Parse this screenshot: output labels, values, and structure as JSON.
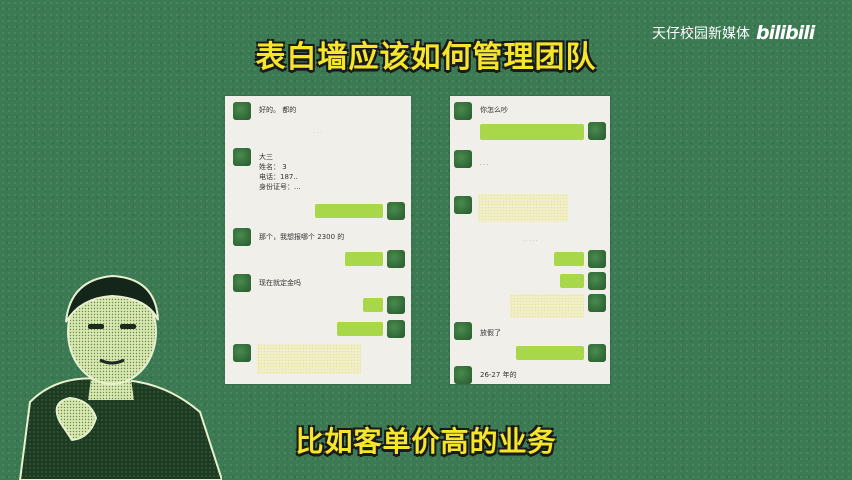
{
  "title": "表白墙应该如何管理团队",
  "subtitle": "比如客单价高的业务",
  "brand": {
    "text": "天仔校园新媒体",
    "logo": "bilibili"
  },
  "left_chat": {
    "msg1": "好的。 都的",
    "msg2_lines": [
      "大三",
      "姓名： 3",
      "电话：187..",
      "身份证号：..."
    ],
    "msg3": "那个，我想报哪个 2300 的",
    "msg4": "现在就定金吗"
  },
  "right_chat": {
    "msg1": "你怎么吵",
    "msg2": "放假了",
    "msg3": "26-27 年的"
  },
  "colors": {
    "title": "#f5e62a",
    "background": "#3b7a52",
    "bubble_me": "#a8d84a"
  }
}
